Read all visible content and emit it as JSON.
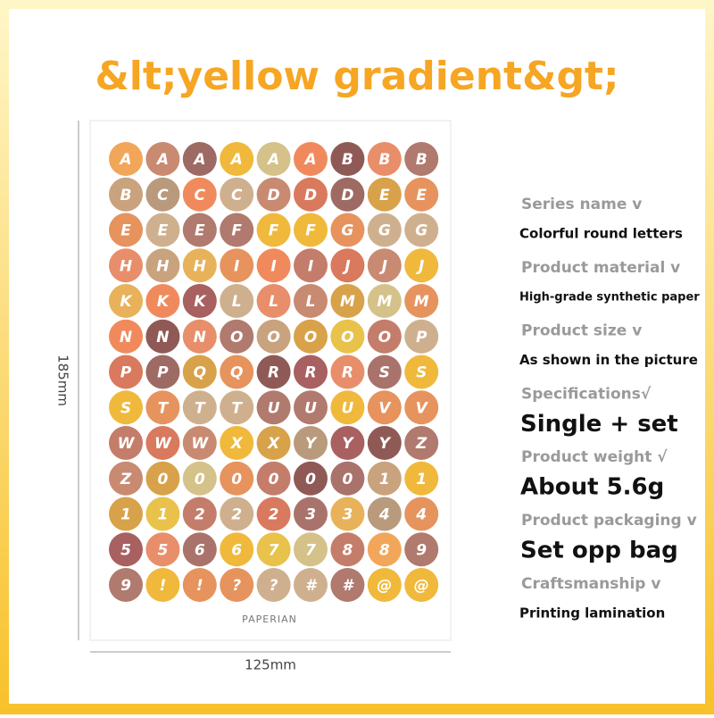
{
  "title": "&lt;yellow gradient&gt;",
  "sheet": {
    "brand": "PAPERIAN",
    "height_label": "185mm",
    "width_label": "125mm",
    "rows": [
      [
        "A",
        "A",
        "A",
        "A",
        "A",
        "A",
        "B",
        "B",
        "B"
      ],
      [
        "B",
        "C",
        "C",
        "C",
        "D",
        "D",
        "D",
        "E",
        "E"
      ],
      [
        "E",
        "E",
        "E",
        "F",
        "F",
        "F",
        "G",
        "G",
        "G"
      ],
      [
        "H",
        "H",
        "H",
        "I",
        "I",
        "I",
        "J",
        "J",
        "J"
      ],
      [
        "K",
        "K",
        "K",
        "L",
        "L",
        "L",
        "M",
        "M",
        "M"
      ],
      [
        "N",
        "N",
        "N",
        "O",
        "O",
        "O",
        "O",
        "O",
        "P"
      ],
      [
        "P",
        "P",
        "Q",
        "Q",
        "R",
        "R",
        "R",
        "S",
        "S"
      ],
      [
        "S",
        "T",
        "T",
        "T",
        "U",
        "U",
        "U",
        "V",
        "V"
      ],
      [
        "W",
        "W",
        "W",
        "X",
        "X",
        "Y",
        "Y",
        "Y",
        "Z"
      ],
      [
        "Z",
        "0",
        "0",
        "0",
        "0",
        "0",
        "0",
        "1",
        "1"
      ],
      [
        "1",
        "1",
        "2",
        "2",
        "2",
        "3",
        "3",
        "4",
        "4"
      ],
      [
        "5",
        "5",
        "6",
        "6",
        "7",
        "7",
        "8",
        "8",
        "9"
      ],
      [
        "9",
        "!",
        "!",
        "?",
        "?",
        "#",
        "#",
        "@",
        "@"
      ]
    ]
  },
  "specs": [
    {
      "label": "Series name v",
      "value": "Colorful round letters"
    },
    {
      "label": "Product material v",
      "value": "High-grade synthetic paper"
    },
    {
      "label": "Product size v",
      "value": "As shown in the picture"
    },
    {
      "label": "Specifications√",
      "value": "Single + set"
    },
    {
      "label": "Product weight √",
      "value": "About 5.6g"
    },
    {
      "label": "Product packaging v",
      "value": "Set opp bag"
    },
    {
      "label": "Craftsmanship v",
      "value": "Printing lamination"
    }
  ]
}
